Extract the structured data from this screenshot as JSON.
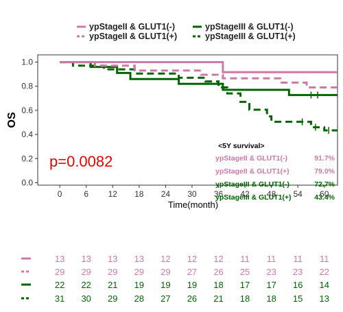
{
  "chart_data": {
    "type": "line",
    "xlabel": "Time(month)",
    "ylabel": "OS",
    "xlim": [
      -5,
      63
    ],
    "ylim": [
      -0.02,
      1.06
    ],
    "x_ticks": [
      0,
      6,
      12,
      18,
      24,
      30,
      36,
      42,
      48,
      54,
      60
    ],
    "y_ticks": [
      "0.0",
      "0.2",
      "0.4",
      "0.6",
      "0.8",
      "1.0"
    ],
    "grid": false,
    "legend_position": "top",
    "series": [
      {
        "name": "ypStageII & GLUT1(-)",
        "color": "#cc79a7",
        "dash": "solid",
        "steps": [
          [
            0,
            1.0
          ],
          [
            37,
            1.0
          ],
          [
            37,
            0.917
          ],
          [
            63,
            0.917
          ]
        ],
        "censor_x": [],
        "at_risk": [
          "13",
          "13",
          "13",
          "13",
          "12",
          "12",
          "12",
          "11",
          "11",
          "11",
          "11"
        ]
      },
      {
        "name": "ypStageII & GLUT1(+)",
        "color": "#cc79a7",
        "dash": "dashed",
        "steps": [
          [
            0,
            1.0
          ],
          [
            8,
            1.0
          ],
          [
            8,
            0.97
          ],
          [
            17,
            0.97
          ],
          [
            17,
            0.93
          ],
          [
            32,
            0.93
          ],
          [
            32,
            0.895
          ],
          [
            37,
            0.895
          ],
          [
            37,
            0.865
          ],
          [
            50,
            0.865
          ],
          [
            50,
            0.83
          ],
          [
            56,
            0.83
          ],
          [
            56,
            0.79
          ],
          [
            63,
            0.79
          ]
        ],
        "censor_x": [],
        "at_risk": [
          "29",
          "29",
          "29",
          "29",
          "29",
          "27",
          "26",
          "25",
          "23",
          "23",
          "22"
        ]
      },
      {
        "name": "ypStageIII & GLUT1(-)",
        "color": "#006400",
        "dash": "solid",
        "steps": [
          [
            0,
            1.0
          ],
          [
            7,
            1.0
          ],
          [
            7,
            0.96
          ],
          [
            13,
            0.96
          ],
          [
            13,
            0.91
          ],
          [
            16,
            0.91
          ],
          [
            16,
            0.86
          ],
          [
            27,
            0.86
          ],
          [
            27,
            0.82
          ],
          [
            37,
            0.82
          ],
          [
            37,
            0.77
          ],
          [
            45,
            0.77
          ],
          [
            45,
            0.77
          ],
          [
            52,
            0.77
          ],
          [
            52,
            0.727
          ],
          [
            63,
            0.727
          ]
        ],
        "censor_x": [
          57,
          58.5
        ],
        "at_risk": [
          "22",
          "22",
          "21",
          "19",
          "19",
          "19",
          "18",
          "17",
          "17",
          "16",
          "14"
        ]
      },
      {
        "name": "ypStageIII & GLUT1(+)",
        "color": "#006400",
        "dash": "dashed",
        "steps": [
          [
            0,
            1.0
          ],
          [
            3,
            1.0
          ],
          [
            3,
            0.97
          ],
          [
            10,
            0.97
          ],
          [
            10,
            0.94
          ],
          [
            17,
            0.94
          ],
          [
            17,
            0.905
          ],
          [
            27,
            0.905
          ],
          [
            27,
            0.87
          ],
          [
            33,
            0.87
          ],
          [
            33,
            0.84
          ],
          [
            36,
            0.84
          ],
          [
            36,
            0.79
          ],
          [
            38,
            0.79
          ],
          [
            38,
            0.74
          ],
          [
            41,
            0.74
          ],
          [
            41,
            0.67
          ],
          [
            43,
            0.67
          ],
          [
            43,
            0.605
          ],
          [
            47,
            0.605
          ],
          [
            47,
            0.55
          ],
          [
            48,
            0.55
          ],
          [
            48,
            0.505
          ],
          [
            57,
            0.505
          ],
          [
            57,
            0.46
          ],
          [
            60,
            0.46
          ],
          [
            60,
            0.434
          ],
          [
            63,
            0.434
          ]
        ],
        "censor_x": [
          55,
          58,
          61
        ],
        "at_risk": [
          "31",
          "30",
          "29",
          "28",
          "27",
          "26",
          "21",
          "18",
          "18",
          "15",
          "13"
        ]
      }
    ],
    "annotations": {
      "pvalue": "p=0.0082",
      "survival_title": "<5Y survival>",
      "survival_rows": [
        {
          "label": "ypStageII & GLUT1(-)",
          "value": "91.7%"
        },
        {
          "label": "ypStageII & GLUT1(+)",
          "value": "79.0%"
        },
        {
          "label": "ypStageIII & GLUT1(-)",
          "value": "72.7%"
        },
        {
          "label": "ypStageIII & GLUT1(+)",
          "value": "43.4%"
        }
      ]
    }
  }
}
